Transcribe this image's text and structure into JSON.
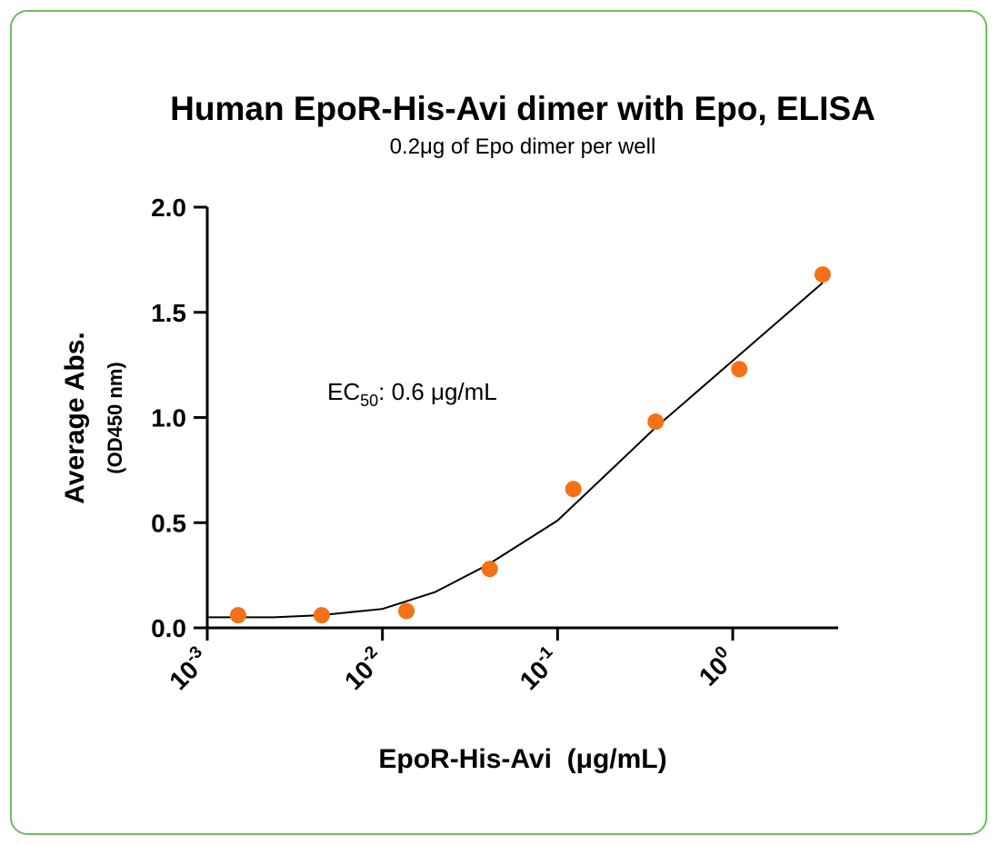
{
  "chart_data": {
    "type": "scatter",
    "title": "Human EpoR-His-Avi dimer with Epo, ELISA",
    "subtitle": "0.2μg of Epo dimer per well",
    "x_label": "EpoR-His-Avi  (μg/mL)",
    "y_label": [
      "Average Abs.",
      "(OD450 nm)"
    ],
    "annotation": {
      "text": "EC",
      "subscript": "50",
      "rest": ": 0.6 μg/mL"
    },
    "x_scale": "log",
    "xlim": [
      0.001,
      4
    ],
    "xticks": [
      {
        "value": 0.001,
        "label": "10",
        "exponent": "-3"
      },
      {
        "value": 0.01,
        "label": "10",
        "exponent": "-2"
      },
      {
        "value": 0.1,
        "label": "10",
        "exponent": "-1"
      },
      {
        "value": 1,
        "label": "10",
        "exponent": "0"
      }
    ],
    "ylim": [
      0,
      2
    ],
    "yticks": [
      {
        "value": 0,
        "label": "0.0"
      },
      0.5,
      {
        "value": 1,
        "label": "1.0"
      },
      1.5,
      {
        "value": 2,
        "label": "2.0"
      }
    ],
    "points": {
      "color": "#f47216",
      "x": [
        0.0015,
        0.0045,
        0.0137,
        0.041,
        0.123,
        0.363,
        1.09,
        3.26
      ],
      "y": [
        0.06,
        0.06,
        0.08,
        0.28,
        0.66,
        0.98,
        1.23,
        1.68
      ]
    },
    "curve": {
      "color": "#000000",
      "x": [
        0.001,
        0.0024,
        0.0044,
        0.01,
        0.02,
        0.04,
        0.1,
        0.22,
        0.36,
        1,
        3.26
      ],
      "y": [
        0.05,
        0.05,
        0.06,
        0.09,
        0.17,
        0.3,
        0.51,
        0.78,
        0.95,
        1.27,
        1.64
      ]
    }
  }
}
